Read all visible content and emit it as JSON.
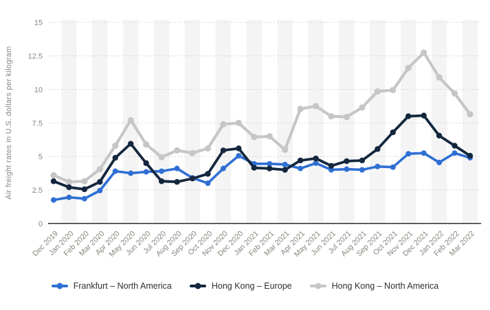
{
  "colors": {
    "stripe": "#f4f4f4",
    "grid": "#cbcbcb",
    "axis_line": "#1a1a1a",
    "tick_text": "#8b857e",
    "legend_text": "#2e2e2e"
  },
  "chart_data": {
    "type": "line",
    "title": "",
    "xlabel": "",
    "ylabel": "Air freight rates in U.S. dollars per kilogram",
    "ylim": [
      0,
      15
    ],
    "yticks": [
      0,
      2.5,
      5,
      7.5,
      10,
      12.5,
      15
    ],
    "grid": "horizontal-dotted",
    "legend_position": "bottom-center",
    "categories": [
      "Dec 2019",
      "Jan 2020",
      "Feb 2020",
      "Mar 2020",
      "Apr 2020",
      "May 2020",
      "Jun 2020",
      "Jul 2020",
      "Aug 2020",
      "Sep 2020",
      "Oct 2020",
      "Nov 2020",
      "Dec 2020",
      "Jan 2021",
      "Feb 2021",
      "Mar 2021",
      "Apr 2021",
      "May 2021",
      "Jun 2021",
      "Jul 2021",
      "Aug 2021",
      "Sep 2021",
      "Oct 2021",
      "Nov 2021",
      "Dec 2021",
      "Jan 2022",
      "Feb 2022",
      "Mar 2022"
    ],
    "series": [
      {
        "name": "Frankfurt – North America",
        "color": "#2e6fd4",
        "values": [
          1.75,
          1.95,
          1.85,
          2.45,
          3.9,
          3.75,
          3.85,
          3.9,
          4.1,
          3.4,
          3.0,
          4.1,
          5.05,
          4.45,
          4.45,
          4.4,
          4.1,
          4.5,
          4.0,
          4.05,
          4.0,
          4.25,
          4.2,
          5.2,
          5.25,
          4.55,
          5.25,
          4.9
        ]
      },
      {
        "name": "Hong Kong – Europe",
        "color": "#14273e",
        "values": [
          3.15,
          2.7,
          2.55,
          3.1,
          4.9,
          5.95,
          4.5,
          3.15,
          3.1,
          3.35,
          3.7,
          5.45,
          5.6,
          4.15,
          4.1,
          4.0,
          4.7,
          4.85,
          4.3,
          4.65,
          4.7,
          5.55,
          6.8,
          8.0,
          8.05,
          6.55,
          5.8,
          5.05
        ]
      },
      {
        "name": "Hong Kong – North America",
        "color": "#c6c6c6",
        "values": [
          3.6,
          3.1,
          3.15,
          4.05,
          5.8,
          7.7,
          5.9,
          4.95,
          5.45,
          5.25,
          5.6,
          7.4,
          7.5,
          6.45,
          6.5,
          5.5,
          8.55,
          8.75,
          8.0,
          7.95,
          8.65,
          9.85,
          9.95,
          11.6,
          12.75,
          10.9,
          9.7,
          8.15
        ]
      }
    ]
  }
}
